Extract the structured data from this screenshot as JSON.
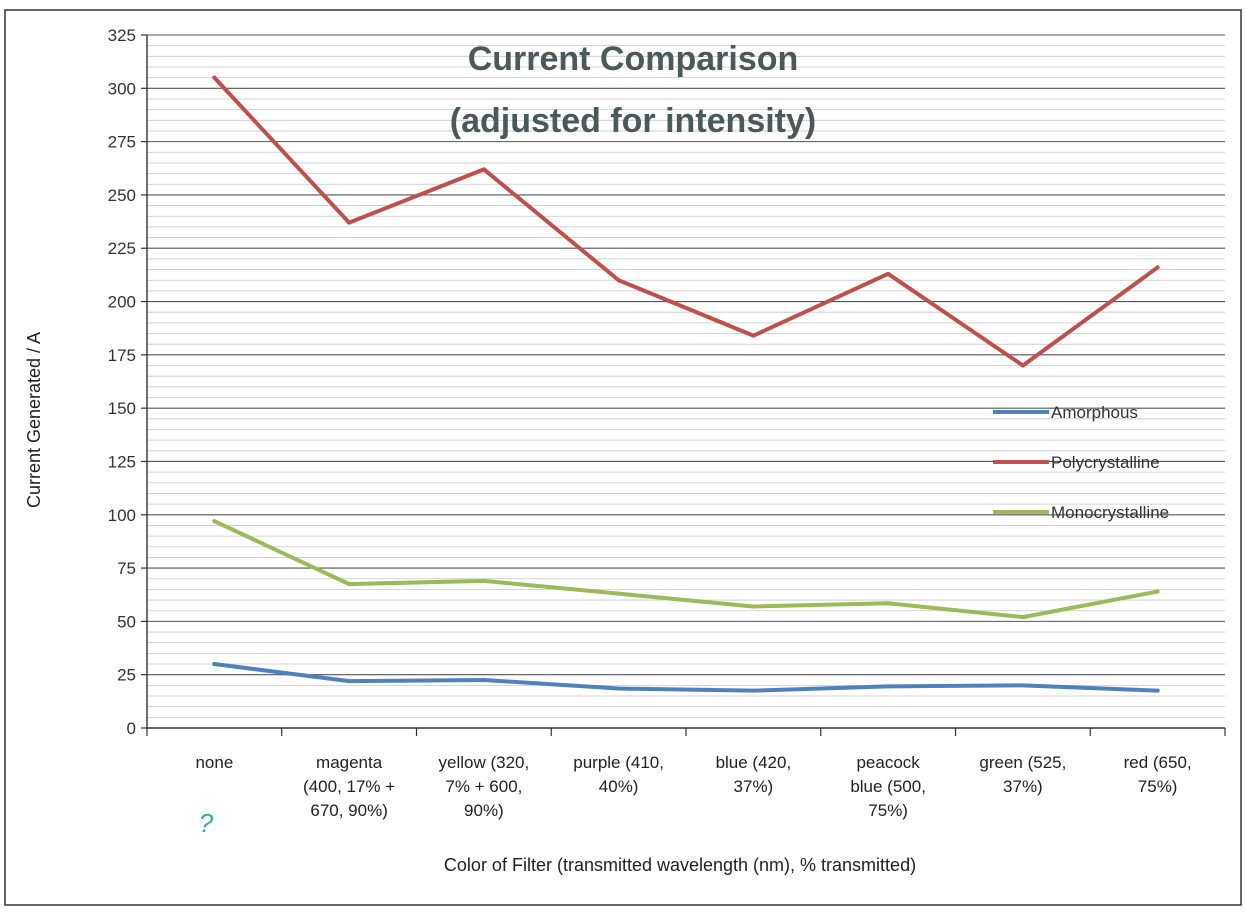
{
  "chart_data": {
    "type": "line",
    "title_lines": [
      "Current Comparison",
      "(adjusted for intensity)"
    ],
    "xlabel": "Color of Filter (transmitted wavelength (nm), % transmitted)",
    "ylabel": "Current Generated / A",
    "ylim": [
      0,
      325
    ],
    "yticks": [
      0,
      25,
      50,
      75,
      100,
      125,
      150,
      175,
      200,
      225,
      250,
      275,
      300,
      325
    ],
    "categories": [
      [
        "none"
      ],
      [
        "magenta",
        "(400, 17% +",
        "670, 90%)"
      ],
      [
        "yellow (320,",
        "7% + 600,",
        "90%)"
      ],
      [
        "purple (410,",
        "40%)"
      ],
      [
        "blue (420,",
        "37%)"
      ],
      [
        "peacock",
        "blue (500,",
        "75%)"
      ],
      [
        "green (525,",
        "37%)"
      ],
      [
        "red (650,",
        "75%)"
      ]
    ],
    "series": [
      {
        "name": "Amorphous",
        "color": "#4f81bd",
        "values": [
          30,
          22,
          22.5,
          18.5,
          17.5,
          19.5,
          20,
          17.5
        ]
      },
      {
        "name": "Polycrystalline",
        "color": "#c0504d",
        "values": [
          305,
          237,
          262,
          210,
          184,
          213,
          170,
          216
        ]
      },
      {
        "name": "Monocrystalline",
        "color": "#9bbb59",
        "values": [
          97,
          67.5,
          69,
          63,
          57,
          58.5,
          52,
          64
        ]
      }
    ],
    "grid": true,
    "legend": "right",
    "handwritten_note": "?"
  }
}
